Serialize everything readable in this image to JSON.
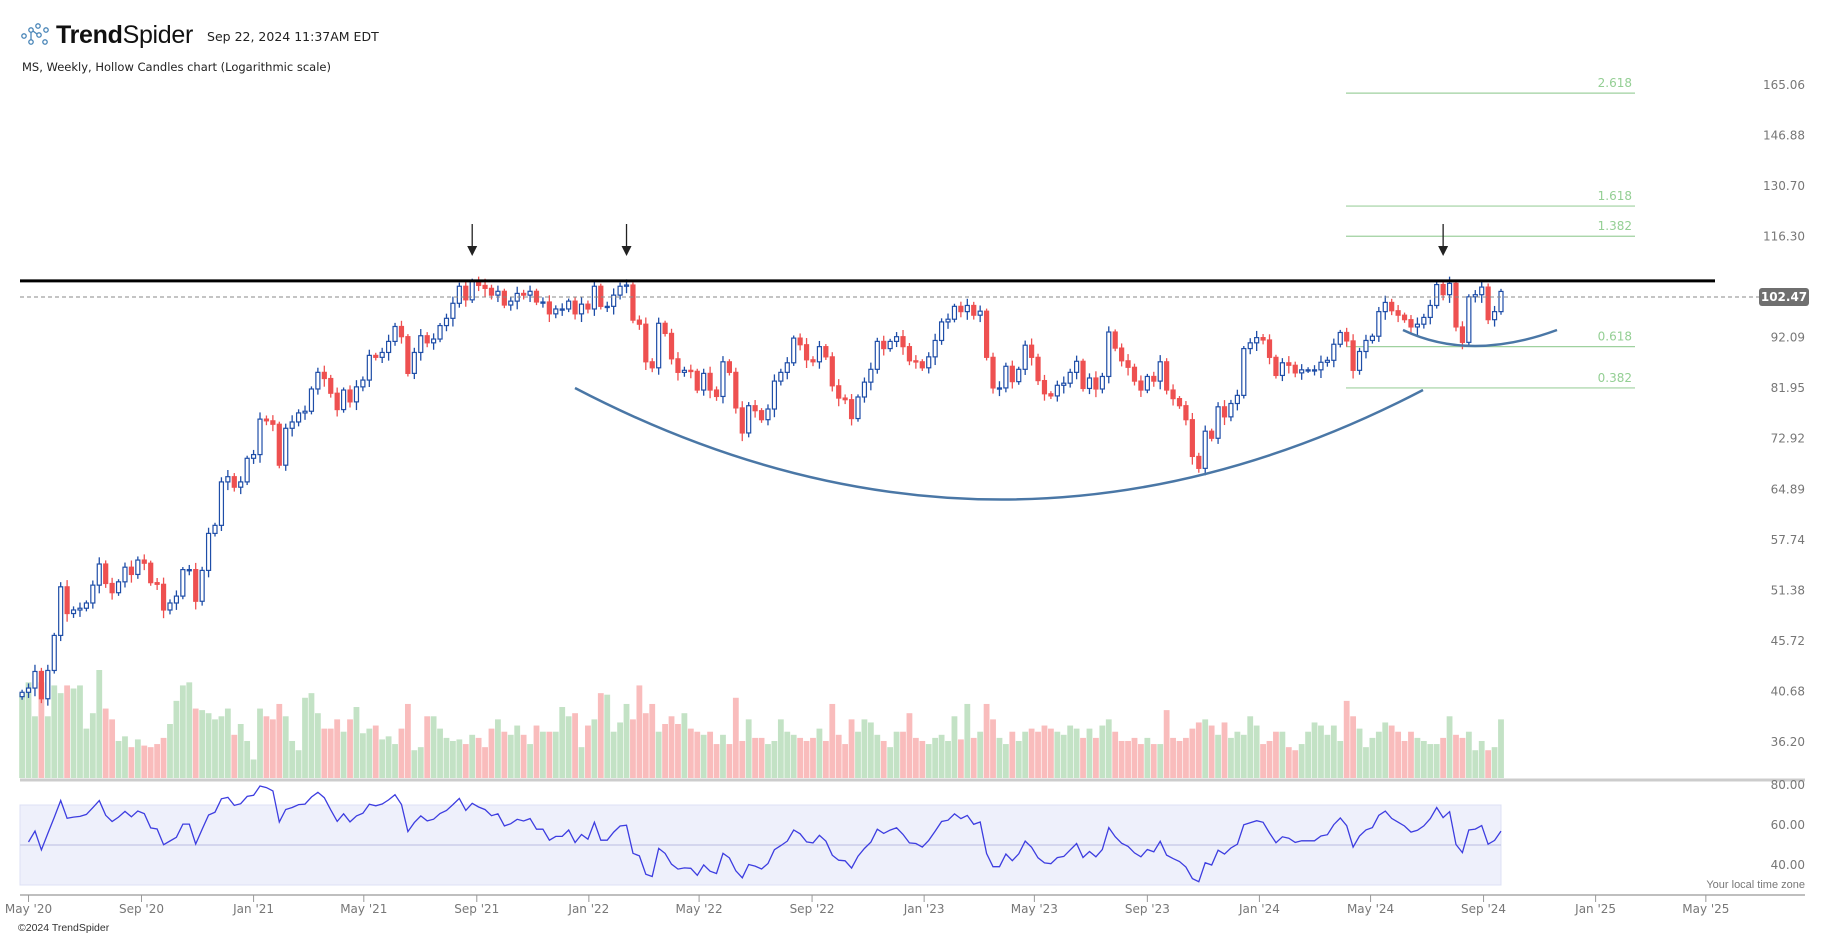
{
  "header": {
    "brand_bold": "Trend",
    "brand_light": "Spider",
    "timestamp": "Sep 22, 2024 11:37AM EDT",
    "subtitle": "MS, Weekly, Hollow Candles chart (Logarithmic scale)"
  },
  "footer": {
    "copyright": "©2024 TrendSpider",
    "timezone_note": "Your local time zone"
  },
  "colors": {
    "up": "#1f4ea8",
    "down": "#ee5050",
    "volume_up": "#c3e2c5",
    "volume_down": "#f9bcbc",
    "rsi_line": "#3d3de0",
    "rsi_band": "#eef0fb",
    "fib": "#9fd19f",
    "arc": "#4a77a6",
    "resistance": "#000000"
  },
  "chart_data": {
    "type": "candlestick",
    "symbol": "MS",
    "interval": "Weekly",
    "scale": "log",
    "last_date": "2024-09-20",
    "last_price_label": "102.47",
    "last_price": 102.47,
    "resistance_price": 105.0,
    "y_ticks": [
      "165.06",
      "146.88",
      "130.70",
      "116.30",
      "92.09",
      "81.95",
      "72.92",
      "64.89",
      "57.74",
      "51.38",
      "45.72",
      "40.68",
      "36.20"
    ],
    "x_ticks": [
      {
        "label": "May '20",
        "date": "2020-05-01"
      },
      {
        "label": "Sep '20",
        "date": "2020-09-01"
      },
      {
        "label": "Jan '21",
        "date": "2021-01-01"
      },
      {
        "label": "May '21",
        "date": "2021-05-01"
      },
      {
        "label": "Sep '21",
        "date": "2021-09-01"
      },
      {
        "label": "Jan '22",
        "date": "2022-01-01"
      },
      {
        "label": "May '22",
        "date": "2022-05-01"
      },
      {
        "label": "Sep '22",
        "date": "2022-09-01"
      },
      {
        "label": "Jan '23",
        "date": "2023-01-01"
      },
      {
        "label": "May '23",
        "date": "2023-05-01"
      },
      {
        "label": "Sep '23",
        "date": "2023-09-01"
      },
      {
        "label": "Jan '24",
        "date": "2024-01-01"
      },
      {
        "label": "May '24",
        "date": "2024-05-01"
      },
      {
        "label": "Sep '24",
        "date": "2024-09-01"
      },
      {
        "label": "Jan '25",
        "date": "2025-01-01"
      },
      {
        "label": "May '25",
        "date": "2025-05-01"
      }
    ],
    "fib_levels": [
      {
        "label": "2.618",
        "price": 162.0
      },
      {
        "label": "1.618",
        "price": 124.8
      },
      {
        "label": "1.382",
        "price": 116.4
      },
      {
        "label": "0.618",
        "price": 90.2
      },
      {
        "label": "0.382",
        "price": 82.0
      }
    ],
    "arrow_dates": [
      "2021-08-27",
      "2022-02-11",
      "2024-07-19"
    ],
    "rsi": {
      "period": 14,
      "ticks": [
        "80.00",
        "60.00",
        "40.00"
      ],
      "band": [
        30,
        70
      ]
    },
    "closes": [
      40.6,
      41,
      42.6,
      40,
      42.7,
      46.3,
      51.8,
      48.7,
      49.1,
      49.3,
      49.9,
      52,
      54.6,
      52.2,
      51.1,
      52.4,
      54.2,
      53.3,
      55.1,
      54.7,
      52.3,
      52.1,
      49.1,
      49.9,
      50.7,
      53.9,
      53.9,
      50.1,
      53.8,
      58.6,
      59.7,
      66,
      66.8,
      65.2,
      66,
      69.7,
      70.3,
      76.3,
      76,
      75.4,
      68.6,
      74.7,
      75.8,
      77.4,
      77.7,
      81.8,
      85,
      83.8,
      81,
      78,
      81.6,
      79.4,
      82.2,
      83.5,
      88.4,
      88,
      89,
      91.3,
      94.5,
      92.3,
      84.8,
      89,
      92.5,
      91,
      91.8,
      94.7,
      96.3,
      99.7,
      103.7,
      100.5,
      104.9,
      103.9,
      103.2,
      101.6,
      102.5,
      99.3,
      100.2,
      102,
      101.6,
      102.5,
      100,
      100,
      97.3,
      98.4,
      98.4,
      100.2,
      97.3,
      99.5,
      98.4,
      103.7,
      99,
      99,
      101.6,
      103.7,
      104,
      95.9,
      95,
      87.1,
      85.9,
      95.2,
      93,
      87.7,
      85,
      85.4,
      85.2,
      81.6,
      84.8,
      81.6,
      80.4,
      87.1,
      85,
      78.3,
      73.9,
      78.7,
      77.8,
      76.2,
      78.1,
      83.3,
      85,
      86.9,
      92,
      90.6,
      87.5,
      87.1,
      90.2,
      88.1,
      82.4,
      80.1,
      79.8,
      76.4,
      80.3,
      83.1,
      85.6,
      91.3,
      89.8,
      91.3,
      92.3,
      90.2,
      87.3,
      87.1,
      85.9,
      88.1,
      91.5,
      95.5,
      96.1,
      99,
      97.8,
      99.2,
      97,
      97.9,
      88,
      82,
      82,
      86.2,
      83.2,
      85.6,
      90.5,
      88,
      83.4,
      80.9,
      80.5,
      82.5,
      82.9,
      85,
      87.2,
      81.9,
      83.9,
      81.8,
      84.2,
      93.3,
      89.9,
      87.3,
      86,
      83.3,
      81.6,
      84.2,
      83.3,
      87.1,
      81.6,
      80,
      78.7,
      76.2,
      70,
      68.1,
      74.2,
      73,
      78.5,
      76.7,
      79.1,
      80.6,
      89.8,
      91,
      92.1,
      91.6,
      88,
      84.4,
      86.9,
      86.4,
      84.9,
      85.5,
      85.5,
      85.5,
      87,
      87.4,
      90.7,
      93.2,
      91.4,
      85.4,
      89.2,
      91.5,
      92.4,
      97.8,
      99.9,
      98,
      97,
      96,
      94.4,
      95,
      96.5,
      99.2,
      104.1,
      101.7,
      104.4,
      94.4,
      91.1,
      101.2,
      101.7,
      103.5,
      96,
      97.8,
      102.47
    ],
    "volume_relative": [
      55,
      62,
      40,
      62,
      40,
      60,
      55,
      60,
      58,
      60,
      32,
      42,
      70,
      45,
      38,
      24,
      27,
      20,
      25,
      21,
      20,
      22,
      26,
      35,
      50,
      60,
      62,
      45,
      44,
      42,
      38,
      40,
      45,
      28,
      35,
      24,
      12,
      45,
      40,
      38,
      48,
      40,
      24,
      18,
      52,
      55,
      42,
      32,
      32,
      38,
      30,
      38,
      46,
      29,
      32,
      34,
      25,
      27,
      22,
      32,
      48,
      18,
      20,
      40,
      40,
      32,
      26,
      24,
      25,
      22,
      28,
      26,
      20,
      32,
      38,
      30,
      28,
      34,
      28,
      22,
      34,
      30,
      30,
      30,
      46,
      40,
      42,
      20,
      34,
      38,
      55,
      54,
      30,
      36,
      48,
      38,
      60,
      42,
      48,
      30,
      35,
      40,
      35,
      42,
      32,
      30,
      28,
      30,
      22,
      28,
      22,
      52,
      24,
      38,
      26,
      26,
      22,
      24,
      38,
      30,
      28,
      26,
      24,
      26,
      32,
      24,
      48,
      28,
      22,
      38,
      30,
      38,
      36,
      28,
      24,
      20,
      30,
      30,
      42,
      26,
      24,
      22,
      26,
      28,
      24,
      40,
      25,
      48,
      26,
      30,
      48,
      38,
      26,
      22,
      30,
      24,
      30,
      32,
      30,
      34,
      32,
      30,
      28,
      34,
      32,
      26,
      32,
      26,
      34,
      38,
      30,
      24,
      24,
      26,
      22,
      26,
      22,
      22,
      44,
      26,
      24,
      26,
      32,
      36,
      38,
      34,
      28,
      36,
      26,
      30,
      28,
      40,
      34,
      22,
      24,
      30,
      30,
      20,
      18,
      22,
      30,
      36,
      34,
      28,
      34,
      24,
      50,
      40,
      32,
      20,
      26,
      30,
      36,
      34,
      30,
      24,
      30,
      26,
      24,
      22,
      22,
      26,
      40,
      28,
      26,
      30,
      18,
      24,
      18,
      20,
      38
    ]
  }
}
